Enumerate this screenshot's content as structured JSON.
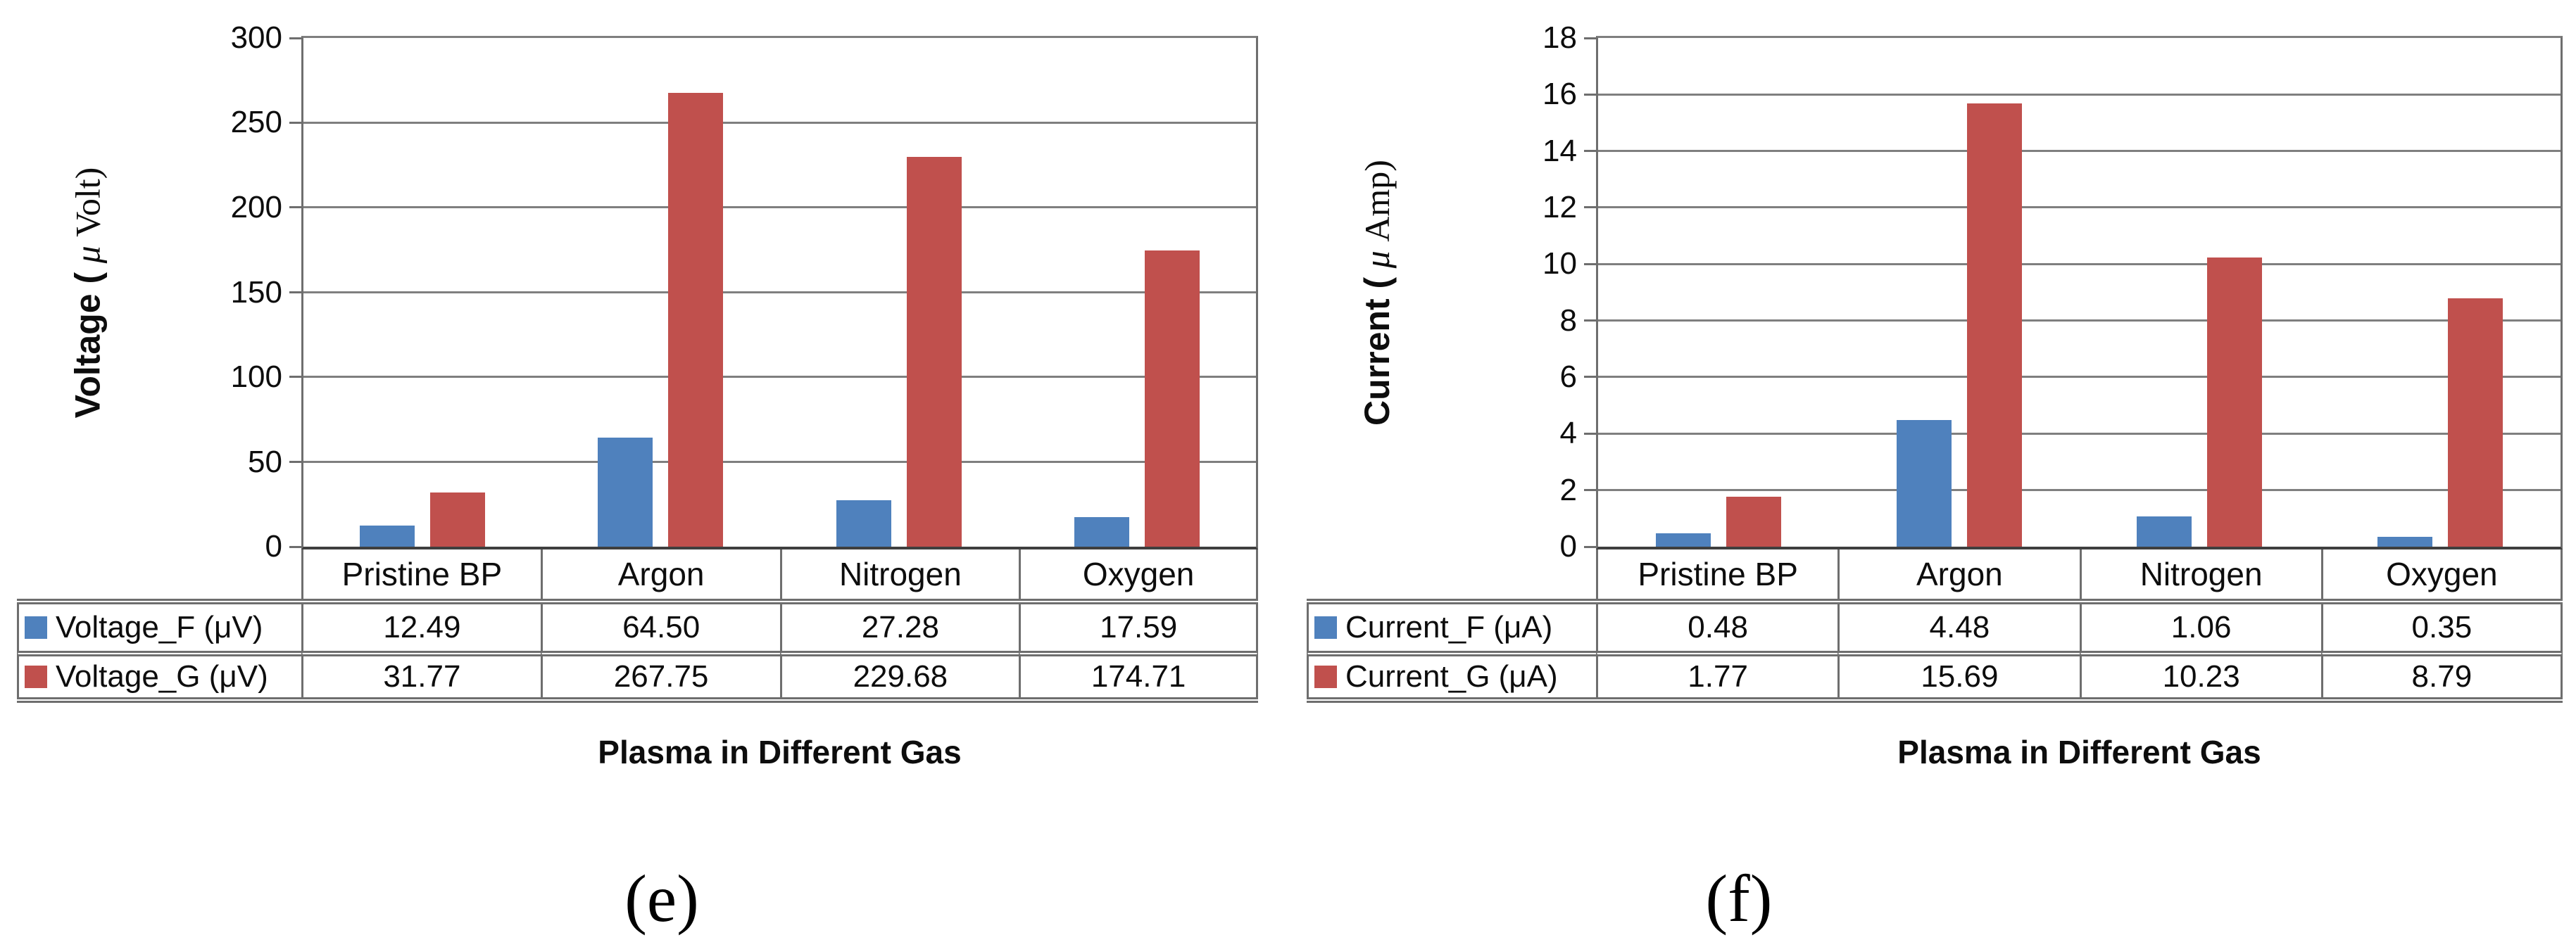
{
  "figure": {
    "background": "#ffffff",
    "text_color": "#0d0d0d",
    "grid_color": "#7f7f7f",
    "border_color": "#6e6e6e",
    "axis_color": "#3f3f3f",
    "bar_blue": "#4F81BD",
    "bar_red": "#C0504D"
  },
  "chart_data": [
    {
      "type": "bar",
      "caption": "(e)",
      "categories": [
        "Pristine BP",
        "Argon",
        "Nitrogen",
        "Oxygen"
      ],
      "series": [
        {
          "name": "Voltage_F (μV)",
          "color": "#4F81BD",
          "values": [
            12.49,
            64.5,
            27.28,
            17.59
          ],
          "labels": [
            "12.49",
            "64.50",
            "27.28",
            "17.59"
          ]
        },
        {
          "name": "Voltage_G (μV)",
          "color": "#C0504D",
          "values": [
            31.77,
            267.75,
            229.68,
            174.71
          ],
          "labels": [
            "31.77",
            "267.75",
            "229.68",
            "174.71"
          ]
        }
      ],
      "xlabel": "Plasma in Different Gas",
      "ylabel": "Voltage ( μ Volt)",
      "ylabel_parts": {
        "prefix": "Voltage (",
        "mu": " μ ",
        "suffix": "Volt)"
      },
      "ylim": [
        0,
        300
      ],
      "yticks": [
        0,
        50,
        100,
        150,
        200,
        250,
        300
      ],
      "grid": true,
      "legend_position": "data-table-left"
    },
    {
      "type": "bar",
      "caption": "(f)",
      "categories": [
        "Pristine BP",
        "Argon",
        "Nitrogen",
        "Oxygen"
      ],
      "series": [
        {
          "name": "Current_F (μA)",
          "color": "#4F81BD",
          "values": [
            0.48,
            4.48,
            1.06,
            0.35
          ],
          "labels": [
            "0.48",
            "4.48",
            "1.06",
            "0.35"
          ]
        },
        {
          "name": "Current_G (μA)",
          "color": "#C0504D",
          "values": [
            1.77,
            15.69,
            10.23,
            8.79
          ],
          "labels": [
            "1.77",
            "15.69",
            "10.23",
            "8.79"
          ]
        }
      ],
      "xlabel": "Plasma in Different Gas",
      "ylabel": "Current ( μ Amp)",
      "ylabel_parts": {
        "prefix": "Current (",
        "mu": " μ ",
        "suffix": "Amp)"
      },
      "ylim": [
        0,
        18
      ],
      "yticks": [
        0,
        2,
        4,
        6,
        8,
        10,
        12,
        14,
        16,
        18
      ],
      "grid": true,
      "legend_position": "data-table-left"
    }
  ]
}
